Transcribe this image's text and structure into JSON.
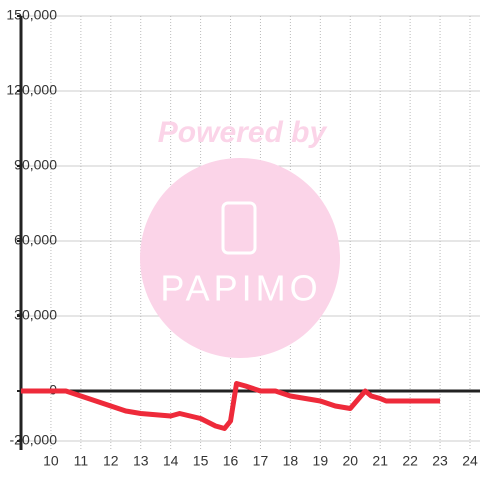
{
  "chart_data": {
    "type": "line",
    "watermark": {
      "text": "Powered by",
      "logo": "PAPIMO"
    },
    "x": [
      9,
      10.5,
      11,
      11.5,
      12,
      12.5,
      13,
      13.5,
      14,
      14.3,
      15,
      15.5,
      15.8,
      16,
      16.2,
      16.5,
      17,
      17.5,
      18,
      18.5,
      19,
      19.5,
      20,
      20.5,
      20.7,
      21,
      21.2,
      21.5,
      22,
      23
    ],
    "series": [
      {
        "color": "#ee2a3a",
        "values": [
          0,
          0,
          -2000,
          -4000,
          -6000,
          -8000,
          -9000,
          -9500,
          -10000,
          -9000,
          -11000,
          -14000,
          -15000,
          -12000,
          3000,
          2000,
          0,
          0,
          -2000,
          -3000,
          -4000,
          -6000,
          -7000,
          0,
          -2000,
          -3000,
          -4000,
          -4000,
          -4000,
          -4000
        ]
      }
    ],
    "xlim": [
      9,
      24
    ],
    "ylim": [
      -20000,
      150000
    ],
    "xticks": [
      10,
      11,
      12,
      13,
      14,
      15,
      16,
      17,
      18,
      19,
      20,
      21,
      22,
      23,
      24
    ],
    "yticks": [
      {
        "value": -20000,
        "label": "-20,000"
      },
      0,
      {
        "value": 30000,
        "label": "30,000"
      },
      {
        "value": 60000,
        "label": "60,000"
      },
      {
        "value": 90000,
        "label": "90,000"
      },
      {
        "value": 120000,
        "label": "120,000"
      },
      {
        "value": 150000,
        "label": "150,000"
      }
    ],
    "grid": true
  }
}
